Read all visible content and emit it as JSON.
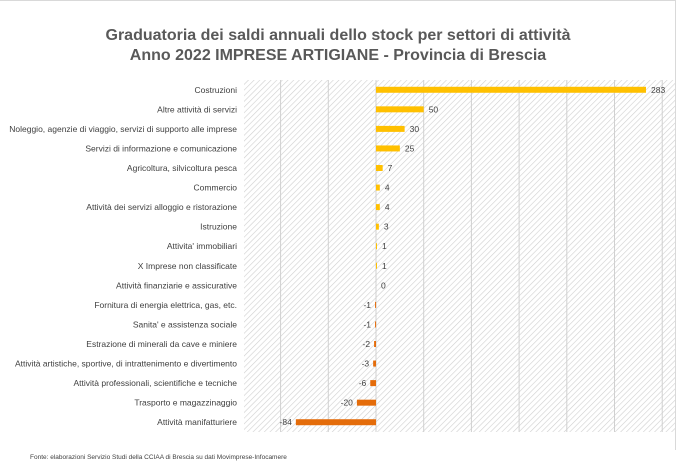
{
  "chart_data": {
    "type": "bar",
    "orientation": "horizontal",
    "title_line1": "Graduatoria  dei saldi annuali dello stock per settori di attività",
    "title_line2": "Anno 2022 IMPRESE ARTIGIANE - Provincia di Brescia",
    "categories": [
      "Costruzioni",
      "Altre attività di servizi",
      "Noleggio, agenzie di viaggio, servizi di supporto alle imprese",
      "Servizi di informazione e comunicazione",
      "Agricoltura, silvicoltura pesca",
      "Commercio",
      "Attività dei servizi alloggio e ristorazione",
      "Istruzione",
      "Attivita' immobiliari",
      "X Imprese non classificate",
      "Attività finanziarie e assicurative",
      "Fornitura di energia elettrica, gas, etc.",
      "Sanita' e assistenza sociale",
      "Estrazione di minerali da cave e miniere",
      "Attività artistiche, sportive, di intrattenimento e divertimento",
      "Attività professionali, scientifiche e tecniche",
      "Trasporto e magazzinaggio",
      "Attività manifatturiere"
    ],
    "values": [
      283,
      50,
      30,
      25,
      7,
      4,
      4,
      3,
      1,
      1,
      0,
      -1,
      -1,
      -2,
      -3,
      -6,
      -20,
      -84
    ],
    "xlim": [
      -100,
      300
    ],
    "grid": true,
    "legend": "none",
    "colors": {
      "positive": "#FFC000",
      "negative": "#E46C0A"
    }
  },
  "source": "Fonte: elaborazioni  Servizio Studi della CCIAA di Brescia su dati Movimprese-Infocamere"
}
